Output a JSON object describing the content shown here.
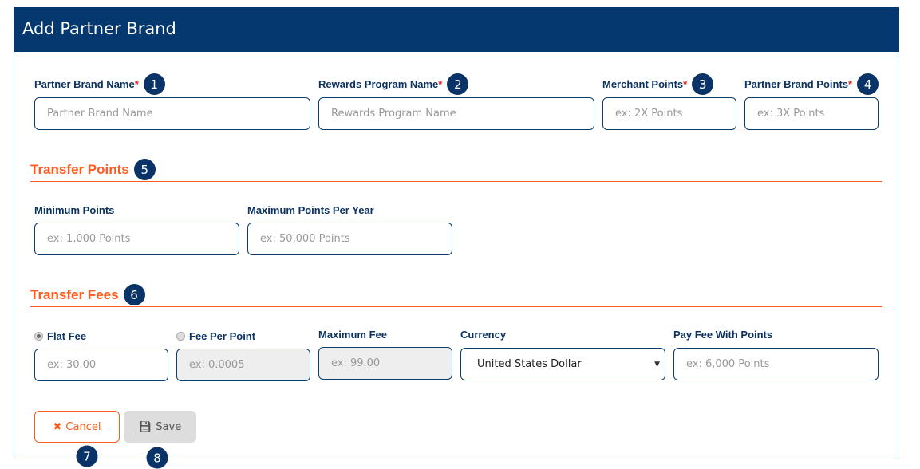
{
  "title": "Add Partner Brand",
  "fields": {
    "partner_brand_name": {
      "label": "Partner Brand Name",
      "placeholder": "Partner Brand Name"
    },
    "rewards_program_name": {
      "label": "Rewards Program Name",
      "placeholder": "Rewards Program Name"
    },
    "merchant_points": {
      "label": "Merchant Points",
      "placeholder": "ex: 2X Points"
    },
    "partner_brand_points": {
      "label": "Partner Brand Points",
      "placeholder": "ex: 3X Points"
    },
    "required_mark": "*"
  },
  "transfer_points": {
    "heading": "Transfer Points",
    "minimum": {
      "label": "Minimum Points",
      "placeholder": "ex: 1,000 Points"
    },
    "maximum": {
      "label": "Maximum Points Per Year",
      "placeholder": "ex: 50,000 Points"
    }
  },
  "transfer_fees": {
    "heading": "Transfer Fees",
    "flat_fee": {
      "label": "Flat Fee",
      "placeholder": "ex: 30.00",
      "selected": true
    },
    "fee_per_point": {
      "label": "Fee Per Point",
      "placeholder": "ex: 0.0005",
      "selected": false
    },
    "maximum_fee": {
      "label": "Maximum Fee",
      "placeholder": "ex: 99.00"
    },
    "currency": {
      "label": "Currency",
      "value": "United States Dollar"
    },
    "pay_fee_with_points": {
      "label": "Pay Fee With Points",
      "placeholder": "ex: 6,000 Points"
    }
  },
  "buttons": {
    "cancel": "Cancel",
    "save": "Save"
  },
  "badges": [
    "1",
    "2",
    "3",
    "4",
    "5",
    "6",
    "7",
    "8"
  ],
  "colors": {
    "header": "#04386f",
    "accent": "#ff5a1f",
    "badge": "#0a3467"
  }
}
